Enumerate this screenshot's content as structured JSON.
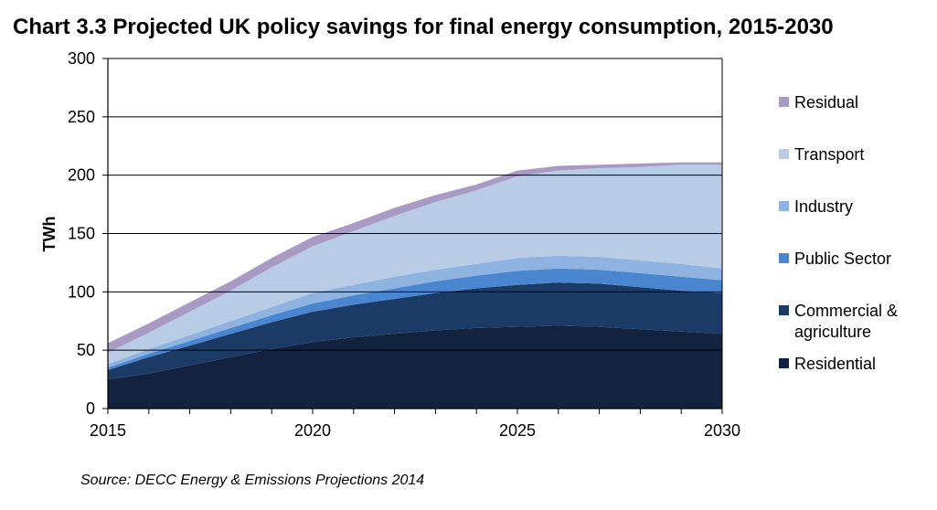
{
  "title": "Chart 3.3 Projected UK policy savings for final energy consumption, 2015-2030",
  "source": "Source: DECC Energy & Emissions Projections 2014",
  "chart_data": {
    "type": "area",
    "stacked": true,
    "title": "Chart 3.3 Projected UK policy savings for final energy consumption, 2015-2030",
    "xlabel": "",
    "ylabel": "TWh",
    "x": [
      2015,
      2016,
      2017,
      2018,
      2019,
      2020,
      2021,
      2022,
      2023,
      2024,
      2025,
      2026,
      2027,
      2028,
      2029,
      2030
    ],
    "xticks": [
      "2015",
      "2020",
      "2025",
      "2030"
    ],
    "xlim": [
      2015,
      2030
    ],
    "yticks": [
      "0",
      "50",
      "100",
      "150",
      "200",
      "250",
      "300"
    ],
    "ylim": [
      0,
      300
    ],
    "grid": "horizontal",
    "legend_position": "right",
    "series": [
      {
        "name": "Residential",
        "color": "#13233f",
        "values": [
          25,
          30,
          37,
          44,
          51,
          57,
          61,
          64,
          67,
          69,
          70,
          71,
          70,
          68,
          66,
          64
        ]
      },
      {
        "name": "Commercial & agriculture",
        "color": "#1c3a66",
        "values": [
          8,
          14,
          17,
          20,
          23,
          26,
          28,
          30,
          32,
          34,
          36,
          37,
          37,
          36,
          35,
          35
        ]
      },
      {
        "name": "Public Sector",
        "color": "#4a86cf",
        "values": [
          2,
          3,
          4,
          5,
          6,
          7,
          8,
          9,
          10,
          11,
          12,
          12,
          12,
          12,
          12,
          11
        ]
      },
      {
        "name": "Industry",
        "color": "#8eb3e0",
        "values": [
          3,
          4,
          5,
          6,
          7,
          9,
          9,
          10,
          10,
          10,
          11,
          11,
          11,
          11,
          11,
          10
        ]
      },
      {
        "name": "Transport",
        "color": "#b8cde5",
        "values": [
          10,
          14,
          20,
          26,
          34,
          40,
          46,
          52,
          58,
          63,
          70,
          73,
          76,
          80,
          85,
          89
        ]
      },
      {
        "name": "Residual",
        "color": "#a99ac5",
        "values": [
          8,
          8,
          8,
          8,
          8,
          8,
          7,
          7,
          6,
          5,
          5,
          4,
          3,
          3,
          2,
          2
        ]
      }
    ],
    "legend_order": [
      "Residual",
      "Transport",
      "Industry",
      "Public Sector",
      "Commercial & agriculture",
      "Residential"
    ]
  }
}
